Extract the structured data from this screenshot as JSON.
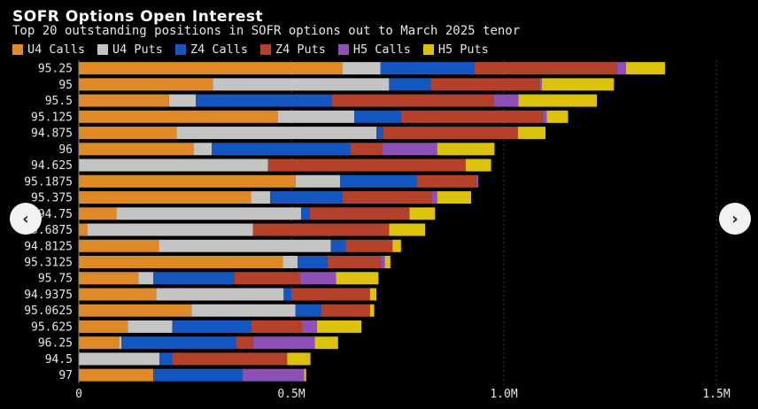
{
  "chart_data": {
    "type": "bar",
    "orientation": "horizontal",
    "stacked": true,
    "title": "SOFR Options Open Interest",
    "subtitle": "Top 20 outstanding positions in SOFR options out to March 2025 tenor",
    "categories": [
      "95.25",
      "95",
      "95.5",
      "95.125",
      "94.875",
      "96",
      "94.625",
      "95.1875",
      "95.375",
      "94.75",
      "95.6875",
      "94.8125",
      "95.3125",
      "95.75",
      "94.9375",
      "95.0625",
      "95.625",
      "96.25",
      "94.5",
      "97"
    ],
    "series": [
      {
        "name": "U4 Calls",
        "color": "#e08a27",
        "values": [
          620000,
          315000,
          212000,
          468000,
          230000,
          270000,
          0,
          510000,
          405000,
          88000,
          20000,
          188000,
          480000,
          140000,
          182000,
          265000,
          115000,
          95000,
          0,
          175000
        ]
      },
      {
        "name": "U4 Puts",
        "color": "#c4c4c4",
        "values": [
          90000,
          415000,
          63000,
          180000,
          470000,
          43000,
          445000,
          105000,
          45000,
          435000,
          390000,
          405000,
          35000,
          35000,
          300000,
          245000,
          105000,
          5000,
          190000,
          0
        ]
      },
      {
        "name": "Z4 Calls",
        "color": "#1457c0",
        "values": [
          220000,
          98000,
          320000,
          110000,
          15000,
          325000,
          0,
          180000,
          170000,
          20000,
          0,
          35000,
          70000,
          190000,
          18000,
          60000,
          185000,
          270000,
          30000,
          210000
        ]
      },
      {
        "name": "Z4 Puts",
        "color": "#b5412a",
        "values": [
          335000,
          255000,
          382000,
          333000,
          318000,
          75000,
          465000,
          140000,
          210000,
          235000,
          320000,
          110000,
          125000,
          155000,
          185000,
          115000,
          120000,
          40000,
          270000,
          0
        ]
      },
      {
        "name": "H5 Calls",
        "color": "#8e4fb7",
        "values": [
          22000,
          6000,
          57000,
          10000,
          0,
          130000,
          0,
          5000,
          13000,
          0,
          0,
          0,
          10000,
          85000,
          0,
          0,
          35000,
          145000,
          0,
          145000
        ]
      },
      {
        "name": "H5 Puts",
        "color": "#dcc20a",
        "values": [
          92000,
          170000,
          185000,
          50000,
          65000,
          135000,
          60000,
          0,
          80000,
          60000,
          85000,
          20000,
          13000,
          100000,
          15000,
          10000,
          105000,
          55000,
          55000,
          5000
        ]
      }
    ],
    "xlabel": "",
    "ylabel": "",
    "xlim": [
      0,
      1500000
    ],
    "x_ticks": [
      {
        "value": 0,
        "label": "0"
      },
      {
        "value": 500000,
        "label": "0.5M"
      },
      {
        "value": 1000000,
        "label": "1.0M"
      },
      {
        "value": 1500000,
        "label": "1.5M"
      }
    ],
    "grid": true,
    "legend_position": "top-left"
  },
  "nav": {
    "prev_icon": "‹",
    "next_icon": "›"
  }
}
